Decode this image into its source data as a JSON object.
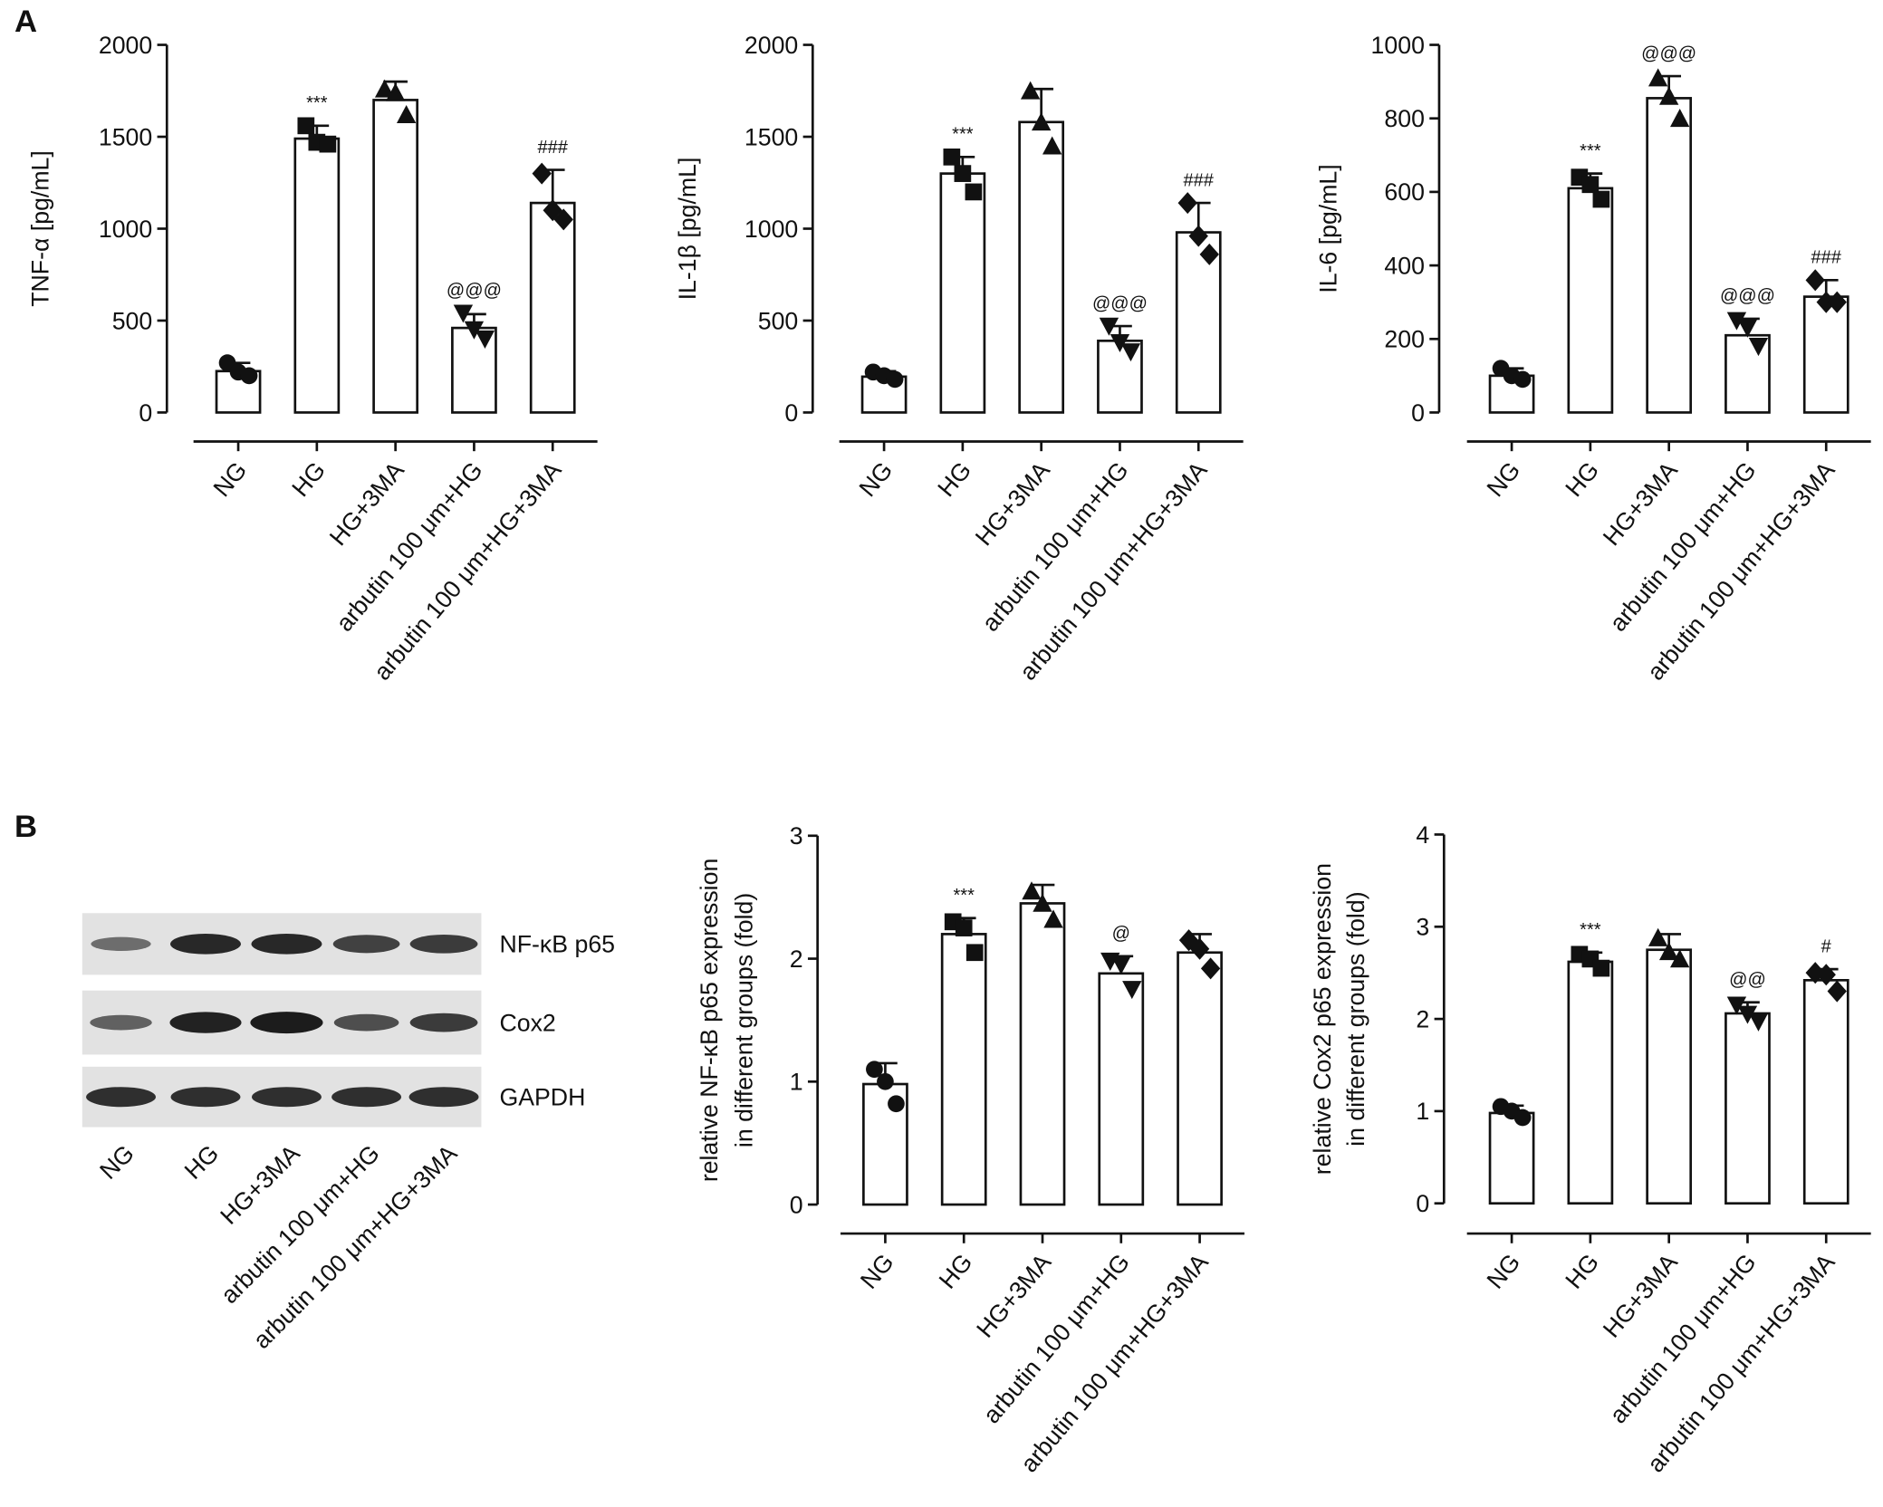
{
  "panels": [
    "A",
    "B"
  ],
  "blot": {
    "proteins": [
      "NF-κB p65",
      "Cox2",
      "GAPDH"
    ],
    "lanes": [
      "NG",
      "HG",
      "HG+3MA",
      "arbutin 100 μm+HG",
      "arbutin 100 μm+HG+3MA"
    ]
  },
  "chart_data": [
    {
      "type": "bar",
      "ylabel": [
        "TNF-α [pg/mL]"
      ],
      "categories": [
        "NG",
        "HG",
        "HG+3MA",
        "arbutin 100 μm+HG",
        "arbutin 100 μm+HG+3MA"
      ],
      "values": [
        225,
        1490,
        1700,
        460,
        1140
      ],
      "errors": [
        45,
        70,
        100,
        75,
        180
      ],
      "points": [
        [
          270,
          220,
          200
        ],
        [
          1560,
          1470,
          1460
        ],
        [
          1760,
          1740,
          1620
        ],
        [
          540,
          450,
          400
        ],
        [
          1300,
          1100,
          1050
        ]
      ],
      "annotations": [
        null,
        "***",
        null,
        "@@@",
        "###"
      ],
      "markers": [
        "circle",
        "square",
        "triangle-up",
        "triangle-down",
        "diamond"
      ],
      "color": "#ffffff",
      "ylim": [
        0,
        2000
      ],
      "yticks": [
        0,
        500,
        1000,
        1500,
        2000
      ]
    },
    {
      "type": "bar",
      "ylabel": [
        "IL-1β [pg/mL]"
      ],
      "categories": [
        "NG",
        "HG",
        "HG+3MA",
        "arbutin 100 μm+HG",
        "arbutin 100 μm+HG+3MA"
      ],
      "values": [
        195,
        1300,
        1580,
        390,
        980
      ],
      "errors": [
        30,
        90,
        180,
        80,
        160
      ],
      "points": [
        [
          220,
          200,
          180
        ],
        [
          1390,
          1300,
          1200
        ],
        [
          1750,
          1580,
          1450
        ],
        [
          470,
          380,
          330
        ],
        [
          1140,
          960,
          860
        ]
      ],
      "annotations": [
        null,
        "***",
        null,
        "@@@",
        "###"
      ],
      "markers": [
        "circle",
        "square",
        "triangle-up",
        "triangle-down",
        "diamond"
      ],
      "color": "#ffffff",
      "ylim": [
        0,
        2000
      ],
      "yticks": [
        0,
        500,
        1000,
        1500,
        2000
      ]
    },
    {
      "type": "bar",
      "ylabel": [
        "IL-6 [pg/mL]"
      ],
      "categories": [
        "NG",
        "HG",
        "HG+3MA",
        "arbutin 100 μm+HG",
        "arbutin 100 μm+HG+3MA"
      ],
      "values": [
        100,
        610,
        855,
        210,
        315
      ],
      "errors": [
        20,
        40,
        60,
        45,
        45
      ],
      "points": [
        [
          120,
          100,
          90
        ],
        [
          640,
          620,
          580
        ],
        [
          910,
          860,
          800
        ],
        [
          250,
          230,
          180
        ],
        [
          360,
          300,
          300
        ]
      ],
      "annotations": [
        null,
        "***",
        "@@@",
        "@@@",
        "###"
      ],
      "markers": [
        "circle",
        "square",
        "triangle-up",
        "triangle-down",
        "diamond"
      ],
      "color": "#ffffff",
      "ylim": [
        0,
        1000
      ],
      "yticks": [
        0,
        200,
        400,
        600,
        800,
        1000
      ]
    },
    {
      "type": "bar",
      "ylabel": [
        "relative NF-κB p65 expression",
        "in different groups (fold)"
      ],
      "categories": [
        "NG",
        "HG",
        "HG+3MA",
        "arbutin 100 μm+HG",
        "arbutin 100 μm+HG+3MA"
      ],
      "values": [
        0.98,
        2.2,
        2.45,
        1.88,
        2.05
      ],
      "errors": [
        0.17,
        0.13,
        0.15,
        0.14,
        0.15
      ],
      "points": [
        [
          1.1,
          1.0,
          0.82
        ],
        [
          2.3,
          2.25,
          2.05
        ],
        [
          2.55,
          2.45,
          2.32
        ],
        [
          1.98,
          1.95,
          1.75
        ],
        [
          2.15,
          2.08,
          1.92
        ]
      ],
      "annotations": [
        null,
        "***",
        null,
        "@",
        null
      ],
      "markers": [
        "circle",
        "square",
        "triangle-up",
        "triangle-down",
        "diamond"
      ],
      "color": "#ffffff",
      "ylim": [
        0,
        3
      ],
      "yticks": [
        0,
        1,
        2,
        3
      ]
    },
    {
      "type": "bar",
      "ylabel": [
        "relative Cox2 p65 expression",
        "in different groups (fold)"
      ],
      "categories": [
        "NG",
        "HG",
        "HG+3MA",
        "arbutin 100 μm+HG",
        "arbutin 100 μm+HG+3MA"
      ],
      "values": [
        0.98,
        2.62,
        2.75,
        2.06,
        2.42
      ],
      "errors": [
        0.08,
        0.1,
        0.17,
        0.12,
        0.12
      ],
      "points": [
        [
          1.05,
          1.0,
          0.93
        ],
        [
          2.7,
          2.65,
          2.55
        ],
        [
          2.88,
          2.73,
          2.65
        ],
        [
          2.15,
          2.05,
          1.97
        ],
        [
          2.5,
          2.48,
          2.3
        ]
      ],
      "annotations": [
        null,
        "***",
        null,
        "@@",
        "#"
      ],
      "markers": [
        "circle",
        "square",
        "triangle-up",
        "triangle-down",
        "diamond"
      ],
      "color": "#ffffff",
      "ylim": [
        0,
        4
      ],
      "yticks": [
        0,
        1,
        2,
        3,
        4
      ]
    }
  ]
}
